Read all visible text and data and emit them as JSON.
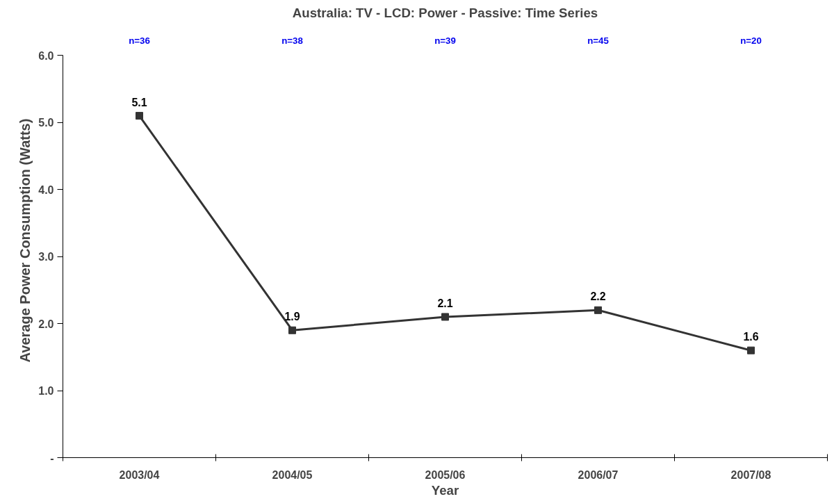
{
  "chart_data": {
    "type": "line",
    "title": "Australia: TV - LCD: Power - Passive: Time Series",
    "xlabel": "Year",
    "ylabel": "Average Power Consumption (Watts)",
    "categories": [
      "2003/04",
      "2004/05",
      "2005/06",
      "2006/07",
      "2007/08"
    ],
    "series": [
      {
        "color": "#333333",
        "values": [
          5.1,
          1.9,
          2.1,
          2.2,
          1.6
        ]
      }
    ],
    "data_labels": true,
    "marker": "square",
    "line_style": "solid",
    "grid": false,
    "ylim": [
      0,
      6
    ],
    "yticks": [
      {
        "value": 0,
        "label": "-"
      },
      {
        "value": 1,
        "label": "1.0"
      },
      {
        "value": 2,
        "label": "2.0"
      },
      {
        "value": 3,
        "label": "3.0"
      },
      {
        "value": 4,
        "label": "4.0"
      },
      {
        "value": 5,
        "label": "5.0"
      },
      {
        "value": 6,
        "label": "6.0"
      }
    ],
    "annotations": [
      "n=36",
      "n=38",
      "n=39",
      "n=45",
      "n=20"
    ]
  }
}
